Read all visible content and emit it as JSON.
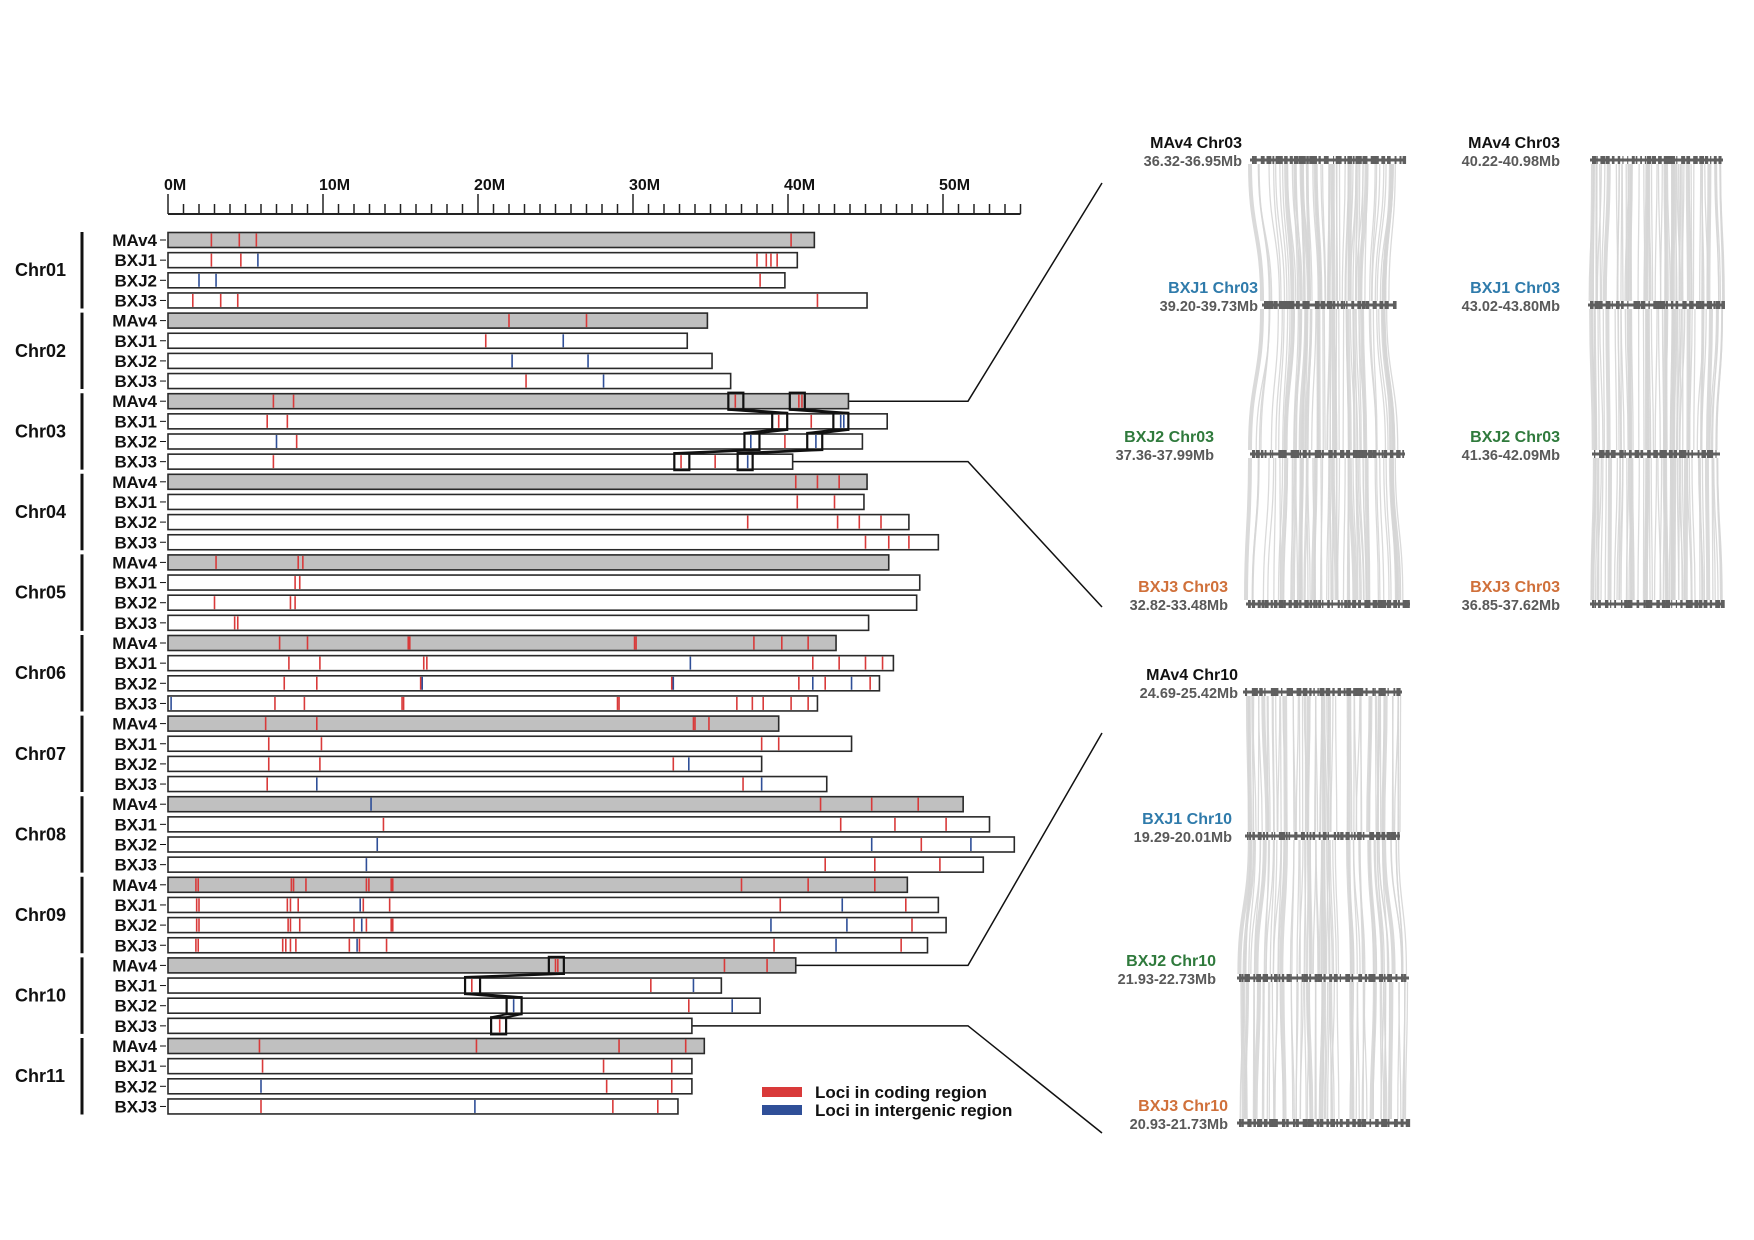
{
  "axis": {
    "tick_labels": [
      "0M",
      "10M",
      "20M",
      "30M",
      "40M",
      "50M"
    ],
    "tick_values": [
      0,
      10,
      20,
      30,
      40,
      50
    ],
    "max_mb": 55,
    "minor_step_mb": 1
  },
  "colors": {
    "coding": "#d93a3a",
    "intergenic": "#2f4f98",
    "reference_fill": "#c0c0c0",
    "query_fill": "#ffffff",
    "MAv4": "#111111",
    "BXJ1": "#2f7bab",
    "BXJ2": "#2f7a3c",
    "BXJ3": "#d0703a",
    "range_text": "#595959",
    "synteny": "#d6d6d6",
    "track": "#5f5f5f"
  },
  "chromosomes": [
    {
      "name": "Chr01",
      "tracks": [
        {
          "genome": "MAv4",
          "length": 41.7,
          "coding": [
            2.8,
            4.6,
            5.7,
            40.2
          ],
          "intergenic": []
        },
        {
          "genome": "BXJ1",
          "length": 40.6,
          "coding": [
            2.8,
            4.7,
            38.0,
            38.6,
            38.9,
            39.3
          ],
          "intergenic": [
            5.8
          ]
        },
        {
          "genome": "BXJ2",
          "length": 39.8,
          "coding": [
            38.2
          ],
          "intergenic": [
            2.0,
            3.1
          ]
        },
        {
          "genome": "BXJ3",
          "length": 45.1,
          "coding": [
            1.6,
            3.4,
            4.5,
            41.9
          ],
          "intergenic": []
        }
      ]
    },
    {
      "name": "Chr02",
      "tracks": [
        {
          "genome": "MAv4",
          "length": 34.8,
          "coding": [
            22.0,
            27.0
          ],
          "intergenic": []
        },
        {
          "genome": "BXJ1",
          "length": 33.5,
          "coding": [
            20.5
          ],
          "intergenic": [
            25.5
          ]
        },
        {
          "genome": "BXJ2",
          "length": 35.1,
          "coding": [],
          "intergenic": [
            22.2,
            27.1
          ]
        },
        {
          "genome": "BXJ3",
          "length": 36.3,
          "coding": [
            23.1
          ],
          "intergenic": [
            28.1
          ]
        }
      ]
    },
    {
      "name": "Chr03",
      "tracks": [
        {
          "genome": "MAv4",
          "length": 43.9,
          "coding": [
            6.8,
            8.1,
            36.6,
            40.7,
            40.9
          ],
          "intergenic": [],
          "regions": [
            [
              36.32,
              36.95
            ],
            [
              40.22,
              40.98
            ]
          ]
        },
        {
          "genome": "BXJ1",
          "length": 46.4,
          "coding": [
            6.4,
            7.7,
            39.4,
            41.5
          ],
          "intergenic": [
            43.4,
            43.6
          ],
          "regions": [
            [
              39.2,
              39.73
            ],
            [
              43.02,
              43.8
            ]
          ]
        },
        {
          "genome": "BXJ2",
          "length": 44.8,
          "coding": [
            8.3,
            39.8
          ],
          "intergenic": [
            7.0,
            37.6,
            41.8
          ],
          "regions": [
            [
              37.36,
              37.99
            ],
            [
              41.36,
              42.09
            ]
          ]
        },
        {
          "genome": "BXJ3",
          "length": 40.3,
          "coding": [
            6.8,
            33.1,
            35.3
          ],
          "intergenic": [
            37.4
          ],
          "regions": [
            [
              32.82,
              33.48
            ],
            [
              36.85,
              37.62
            ]
          ]
        }
      ]
    },
    {
      "name": "Chr04",
      "tracks": [
        {
          "genome": "MAv4",
          "length": 45.1,
          "coding": [
            40.5,
            41.9,
            43.3
          ],
          "intergenic": []
        },
        {
          "genome": "BXJ1",
          "length": 44.9,
          "coding": [
            40.6,
            43.0
          ],
          "intergenic": []
        },
        {
          "genome": "BXJ2",
          "length": 47.8,
          "coding": [
            37.4,
            43.2,
            44.6,
            46.0
          ],
          "intergenic": []
        },
        {
          "genome": "BXJ3",
          "length": 49.7,
          "coding": [
            45.0,
            46.5,
            47.8
          ],
          "intergenic": []
        }
      ]
    },
    {
      "name": "Chr05",
      "tracks": [
        {
          "genome": "MAv4",
          "length": 46.5,
          "coding": [
            3.1,
            8.4,
            8.7
          ],
          "intergenic": []
        },
        {
          "genome": "BXJ1",
          "length": 48.5,
          "coding": [
            8.2,
            8.5
          ],
          "intergenic": []
        },
        {
          "genome": "BXJ2",
          "length": 48.3,
          "coding": [
            3.0,
            7.9,
            8.2
          ],
          "intergenic": []
        },
        {
          "genome": "BXJ3",
          "length": 45.2,
          "coding": [
            4.3,
            4.5
          ],
          "intergenic": []
        }
      ]
    },
    {
      "name": "Chr06",
      "tracks": [
        {
          "genome": "MAv4",
          "length": 43.1,
          "coding": [
            7.2,
            9.0,
            15.5,
            15.6,
            30.1,
            30.2,
            37.8,
            39.6,
            41.3
          ],
          "intergenic": []
        },
        {
          "genome": "BXJ1",
          "length": 46.8,
          "coding": [
            7.8,
            9.8,
            16.5,
            16.7,
            41.6,
            43.3,
            45.0,
            46.1
          ],
          "intergenic": [
            33.7
          ]
        },
        {
          "genome": "BXJ2",
          "length": 45.9,
          "coding": [
            7.5,
            9.6,
            16.3,
            32.5,
            40.7,
            42.4,
            45.3
          ],
          "intergenic": [
            16.4,
            32.6,
            41.6,
            44.1
          ]
        },
        {
          "genome": "BXJ3",
          "length": 41.9,
          "coding": [
            6.9,
            8.8,
            15.1,
            15.2,
            29.0,
            29.1,
            36.7,
            37.7,
            38.4,
            40.2,
            41.3
          ],
          "intergenic": [
            0.2
          ]
        }
      ]
    },
    {
      "name": "Chr07",
      "tracks": [
        {
          "genome": "MAv4",
          "length": 39.4,
          "coding": [
            6.3,
            9.6,
            33.9,
            34.0,
            34.9
          ],
          "intergenic": []
        },
        {
          "genome": "BXJ1",
          "length": 44.1,
          "coding": [
            6.5,
            9.9,
            38.3,
            39.4
          ],
          "intergenic": []
        },
        {
          "genome": "BXJ2",
          "length": 38.3,
          "coding": [
            6.5,
            9.8,
            32.6
          ],
          "intergenic": [
            33.6
          ]
        },
        {
          "genome": "BXJ3",
          "length": 42.5,
          "coding": [
            6.4,
            37.1
          ],
          "intergenic": [
            9.6,
            38.3
          ]
        }
      ]
    },
    {
      "name": "Chr08",
      "tracks": [
        {
          "genome": "MAv4",
          "length": 51.3,
          "coding": [
            42.1,
            45.4,
            48.4
          ],
          "intergenic": [
            13.1
          ]
        },
        {
          "genome": "BXJ1",
          "length": 53.0,
          "coding": [
            13.9,
            43.4,
            46.9,
            50.2
          ],
          "intergenic": []
        },
        {
          "genome": "BXJ2",
          "length": 54.6,
          "coding": [
            48.6
          ],
          "intergenic": [
            13.5,
            45.4,
            51.8
          ]
        },
        {
          "genome": "BXJ3",
          "length": 52.6,
          "coding": [
            42.4,
            45.6,
            49.8
          ],
          "intergenic": [
            12.8
          ]
        }
      ]
    },
    {
      "name": "Chr09",
      "tracks": [
        {
          "genome": "MAv4",
          "length": 47.7,
          "coding": [
            1.8,
            1.95,
            7.96,
            8.1,
            8.9,
            12.8,
            12.96,
            14.4,
            14.5,
            37.0,
            41.3,
            45.6
          ],
          "intergenic": []
        },
        {
          "genome": "BXJ1",
          "length": 49.7,
          "coding": [
            1.85,
            2.0,
            7.7,
            7.9,
            8.4,
            12.6,
            14.3,
            39.5,
            47.6
          ],
          "intergenic": [
            12.4,
            43.5
          ]
        },
        {
          "genome": "BXJ2",
          "length": 50.2,
          "coding": [
            1.85,
            2.0,
            7.75,
            7.9,
            8.5,
            12.0,
            12.8,
            14.4,
            14.5,
            48.0
          ],
          "intergenic": [
            12.5,
            38.9,
            43.8
          ]
        },
        {
          "genome": "BXJ3",
          "length": 49.0,
          "coding": [
            1.8,
            1.95,
            7.4,
            7.6,
            7.9,
            8.25,
            11.7,
            12.35,
            14.1,
            39.1,
            47.3
          ],
          "intergenic": [
            12.2,
            43.1
          ]
        }
      ]
    },
    {
      "name": "Chr10",
      "tracks": [
        {
          "genome": "MAv4",
          "length": 40.5,
          "coding": [
            25.0,
            25.15,
            35.9,
            38.65
          ],
          "intergenic": [],
          "regions": [
            [
              24.69,
              25.42
            ]
          ]
        },
        {
          "genome": "BXJ1",
          "length": 35.7,
          "coding": [
            19.6,
            31.15
          ],
          "intergenic": [
            33.9
          ],
          "regions": [
            [
              19.29,
              20.01
            ]
          ]
        },
        {
          "genome": "BXJ2",
          "length": 38.2,
          "coding": [
            33.6
          ],
          "intergenic": [
            22.3,
            36.4
          ],
          "regions": [
            [
              21.93,
              22.73
            ]
          ]
        },
        {
          "genome": "BXJ3",
          "length": 33.8,
          "coding": [
            21.4
          ],
          "intergenic": [],
          "regions": [
            [
              20.93,
              21.73
            ]
          ]
        }
      ]
    },
    {
      "name": "Chr11",
      "tracks": [
        {
          "genome": "MAv4",
          "length": 34.6,
          "coding": [
            5.9,
            19.9,
            29.1,
            33.4
          ],
          "intergenic": []
        },
        {
          "genome": "BXJ1",
          "length": 33.8,
          "coding": [
            6.1,
            28.1,
            32.5
          ],
          "intergenic": []
        },
        {
          "genome": "BXJ2",
          "length": 33.8,
          "coding": [
            28.3,
            32.5
          ],
          "intergenic": [
            6.0
          ]
        },
        {
          "genome": "BXJ3",
          "length": 32.9,
          "coding": [
            6.0,
            28.7,
            31.6
          ],
          "intergenic": [
            19.8
          ]
        }
      ]
    }
  ],
  "legend": [
    {
      "label": "Loci in coding region",
      "color_key": "coding"
    },
    {
      "label": "Loci in intergenic region",
      "color_key": "intergenic"
    }
  ],
  "synteny_panels": [
    {
      "id": "chr03-region-1",
      "tracks": [
        {
          "genome": "MAv4",
          "title": "MAv4 Chr03",
          "range": "36.32-36.95Mb"
        },
        {
          "genome": "BXJ1",
          "title": "BXJ1 Chr03",
          "range": "39.20-39.73Mb"
        },
        {
          "genome": "BXJ2",
          "title": "BXJ2 Chr03",
          "range": "37.36-37.99Mb"
        },
        {
          "genome": "BXJ3",
          "title": "BXJ3 Chr03",
          "range": "32.82-33.48Mb"
        }
      ]
    },
    {
      "id": "chr03-region-2",
      "tracks": [
        {
          "genome": "MAv4",
          "title": "MAv4 Chr03",
          "range": "40.22-40.98Mb"
        },
        {
          "genome": "BXJ1",
          "title": "BXJ1 Chr03",
          "range": "43.02-43.80Mb"
        },
        {
          "genome": "BXJ2",
          "title": "BXJ2 Chr03",
          "range": "41.36-42.09Mb"
        },
        {
          "genome": "BXJ3",
          "title": "BXJ3 Chr03",
          "range": "36.85-37.62Mb"
        }
      ]
    },
    {
      "id": "chr10-region-1",
      "tracks": [
        {
          "genome": "MAv4",
          "title": "MAv4 Chr10",
          "range": "24.69-25.42Mb"
        },
        {
          "genome": "BXJ1",
          "title": "BXJ1 Chr10",
          "range": "19.29-20.01Mb"
        },
        {
          "genome": "BXJ2",
          "title": "BXJ2 Chr10",
          "range": "21.93-22.73Mb"
        },
        {
          "genome": "BXJ3",
          "title": "BXJ3 Chr10",
          "range": "20.93-21.73Mb"
        }
      ]
    }
  ]
}
